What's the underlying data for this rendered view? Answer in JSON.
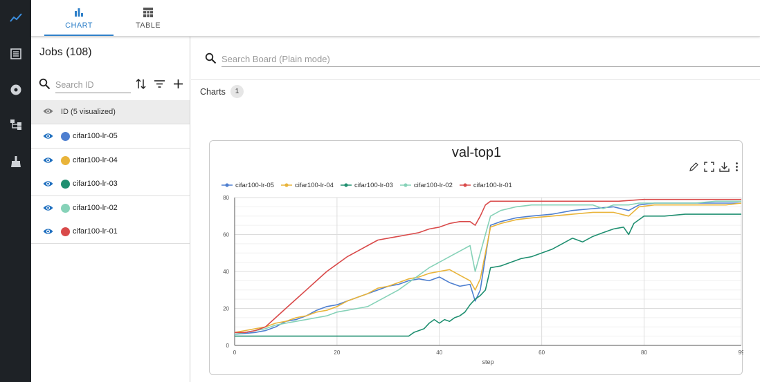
{
  "tabs": [
    {
      "label": "CHART",
      "active": true
    },
    {
      "label": "TABLE",
      "active": false
    }
  ],
  "rail": {
    "items": [
      "chart-line-icon",
      "list-icon",
      "disc-icon",
      "hierarchy-icon",
      "cleanup-icon"
    ],
    "active_index": 0
  },
  "jobs": {
    "title": "Jobs (108)",
    "search_placeholder": "Search ID",
    "header_label": "ID (5 visualized)",
    "items": [
      {
        "label": "cifar100-lr-05",
        "color": "#4e7fd0"
      },
      {
        "label": "cifar100-lr-04",
        "color": "#e9b43a"
      },
      {
        "label": "cifar100-lr-03",
        "color": "#1f8f70"
      },
      {
        "label": "cifar100-lr-02",
        "color": "#86d2b8"
      },
      {
        "label": "cifar100-lr-01",
        "color": "#d94a4a"
      }
    ]
  },
  "board": {
    "search_placeholder": "Search Board (Plain mode)",
    "charts_label": "Charts",
    "charts_count": "1"
  },
  "chart_data": {
    "type": "line",
    "title": "val-top1",
    "xlabel": "step",
    "ylabel": "",
    "xlim": [
      0,
      99
    ],
    "ylim": [
      0,
      80
    ],
    "xticks": [
      "0",
      "20",
      "40",
      "60",
      "80",
      "99"
    ],
    "yticks": [
      "0",
      "20",
      "40",
      "60",
      "80"
    ],
    "grid": true,
    "legend_position": "top-left",
    "series": [
      {
        "name": "cifar100-lr-05",
        "color": "#4e7fd0",
        "points": [
          [
            0,
            6
          ],
          [
            4,
            7
          ],
          [
            6,
            8
          ],
          [
            8,
            10
          ],
          [
            10,
            13
          ],
          [
            12,
            14
          ],
          [
            14,
            16
          ],
          [
            16,
            19
          ],
          [
            18,
            21
          ],
          [
            20,
            22
          ],
          [
            22,
            24
          ],
          [
            24,
            26
          ],
          [
            26,
            28
          ],
          [
            28,
            30
          ],
          [
            30,
            32
          ],
          [
            32,
            33
          ],
          [
            34,
            35
          ],
          [
            36,
            36
          ],
          [
            38,
            35
          ],
          [
            40,
            37
          ],
          [
            42,
            34
          ],
          [
            44,
            32
          ],
          [
            46,
            33
          ],
          [
            47,
            24
          ],
          [
            48,
            30
          ],
          [
            49,
            48
          ],
          [
            50,
            65
          ],
          [
            52,
            67
          ],
          [
            55,
            69
          ],
          [
            58,
            70
          ],
          [
            62,
            71
          ],
          [
            66,
            73
          ],
          [
            70,
            74
          ],
          [
            74,
            75
          ],
          [
            77,
            73
          ],
          [
            79,
            76
          ],
          [
            82,
            77
          ],
          [
            86,
            77
          ],
          [
            90,
            77
          ],
          [
            94,
            77
          ],
          [
            96,
            77
          ],
          [
            99,
            77
          ]
        ]
      },
      {
        "name": "cifar100-lr-04",
        "color": "#e9b43a",
        "points": [
          [
            0,
            7
          ],
          [
            2,
            8
          ],
          [
            4,
            9
          ],
          [
            6,
            10
          ],
          [
            8,
            12
          ],
          [
            10,
            13
          ],
          [
            12,
            15
          ],
          [
            14,
            16
          ],
          [
            16,
            18
          ],
          [
            18,
            19
          ],
          [
            20,
            21
          ],
          [
            22,
            24
          ],
          [
            24,
            26
          ],
          [
            26,
            28
          ],
          [
            28,
            31
          ],
          [
            30,
            32
          ],
          [
            32,
            34
          ],
          [
            34,
            36
          ],
          [
            36,
            37
          ],
          [
            38,
            39
          ],
          [
            40,
            40
          ],
          [
            42,
            41
          ],
          [
            44,
            38
          ],
          [
            46,
            35
          ],
          [
            47,
            30
          ],
          [
            48,
            36
          ],
          [
            49,
            50
          ],
          [
            50,
            64
          ],
          [
            52,
            66
          ],
          [
            55,
            68
          ],
          [
            58,
            69
          ],
          [
            62,
            70
          ],
          [
            66,
            71
          ],
          [
            70,
            72
          ],
          [
            74,
            72
          ],
          [
            77,
            70
          ],
          [
            79,
            75
          ],
          [
            82,
            76
          ],
          [
            86,
            76
          ],
          [
            90,
            76
          ],
          [
            94,
            76
          ],
          [
            96,
            76
          ],
          [
            99,
            77
          ]
        ]
      },
      {
        "name": "cifar100-lr-03",
        "color": "#1f8f70",
        "points": [
          [
            0,
            5
          ],
          [
            10,
            5
          ],
          [
            20,
            5
          ],
          [
            30,
            5
          ],
          [
            34,
            5
          ],
          [
            35,
            7
          ],
          [
            37,
            9
          ],
          [
            38,
            12
          ],
          [
            39,
            14
          ],
          [
            40,
            12
          ],
          [
            41,
            14
          ],
          [
            42,
            13
          ],
          [
            43,
            15
          ],
          [
            44,
            16
          ],
          [
            45,
            18
          ],
          [
            46,
            22
          ],
          [
            47,
            25
          ],
          [
            48,
            27
          ],
          [
            49,
            30
          ],
          [
            50,
            42
          ],
          [
            52,
            43
          ],
          [
            54,
            45
          ],
          [
            56,
            47
          ],
          [
            58,
            48
          ],
          [
            60,
            50
          ],
          [
            62,
            52
          ],
          [
            64,
            55
          ],
          [
            66,
            58
          ],
          [
            68,
            56
          ],
          [
            70,
            59
          ],
          [
            72,
            61
          ],
          [
            74,
            63
          ],
          [
            76,
            64
          ],
          [
            77,
            60
          ],
          [
            78,
            66
          ],
          [
            79,
            68
          ],
          [
            80,
            70
          ],
          [
            84,
            70
          ],
          [
            88,
            71
          ],
          [
            92,
            71
          ],
          [
            96,
            71
          ],
          [
            99,
            71
          ]
        ]
      },
      {
        "name": "cifar100-lr-02",
        "color": "#86d2b8",
        "points": [
          [
            0,
            6
          ],
          [
            4,
            8
          ],
          [
            6,
            9
          ],
          [
            8,
            11
          ],
          [
            10,
            12
          ],
          [
            12,
            13
          ],
          [
            14,
            14
          ],
          [
            16,
            15
          ],
          [
            18,
            16
          ],
          [
            20,
            18
          ],
          [
            22,
            19
          ],
          [
            24,
            20
          ],
          [
            26,
            21
          ],
          [
            28,
            24
          ],
          [
            30,
            27
          ],
          [
            32,
            30
          ],
          [
            34,
            34
          ],
          [
            36,
            38
          ],
          [
            38,
            42
          ],
          [
            40,
            45
          ],
          [
            42,
            48
          ],
          [
            44,
            51
          ],
          [
            46,
            54
          ],
          [
            47,
            40
          ],
          [
            48,
            50
          ],
          [
            49,
            60
          ],
          [
            50,
            70
          ],
          [
            52,
            73
          ],
          [
            55,
            75
          ],
          [
            58,
            76
          ],
          [
            62,
            76
          ],
          [
            66,
            76
          ],
          [
            70,
            76
          ],
          [
            72,
            74
          ],
          [
            74,
            76
          ],
          [
            77,
            76
          ],
          [
            79,
            77
          ],
          [
            82,
            77
          ],
          [
            86,
            77
          ],
          [
            90,
            77
          ],
          [
            94,
            78
          ],
          [
            96,
            78
          ],
          [
            99,
            78
          ]
        ]
      },
      {
        "name": "cifar100-lr-01",
        "color": "#d94a4a",
        "points": [
          [
            0,
            7
          ],
          [
            2,
            7
          ],
          [
            4,
            8
          ],
          [
            6,
            10
          ],
          [
            8,
            15
          ],
          [
            10,
            20
          ],
          [
            12,
            25
          ],
          [
            14,
            30
          ],
          [
            16,
            35
          ],
          [
            18,
            40
          ],
          [
            20,
            44
          ],
          [
            22,
            48
          ],
          [
            24,
            51
          ],
          [
            26,
            54
          ],
          [
            28,
            57
          ],
          [
            30,
            58
          ],
          [
            32,
            59
          ],
          [
            34,
            60
          ],
          [
            36,
            61
          ],
          [
            38,
            63
          ],
          [
            40,
            64
          ],
          [
            42,
            66
          ],
          [
            44,
            67
          ],
          [
            46,
            67
          ],
          [
            47,
            65
          ],
          [
            48,
            70
          ],
          [
            49,
            76
          ],
          [
            50,
            78
          ],
          [
            55,
            78
          ],
          [
            60,
            78
          ],
          [
            65,
            78
          ],
          [
            70,
            78
          ],
          [
            75,
            78
          ],
          [
            80,
            79
          ],
          [
            85,
            79
          ],
          [
            90,
            79
          ],
          [
            95,
            79
          ],
          [
            99,
            79
          ]
        ]
      }
    ]
  }
}
